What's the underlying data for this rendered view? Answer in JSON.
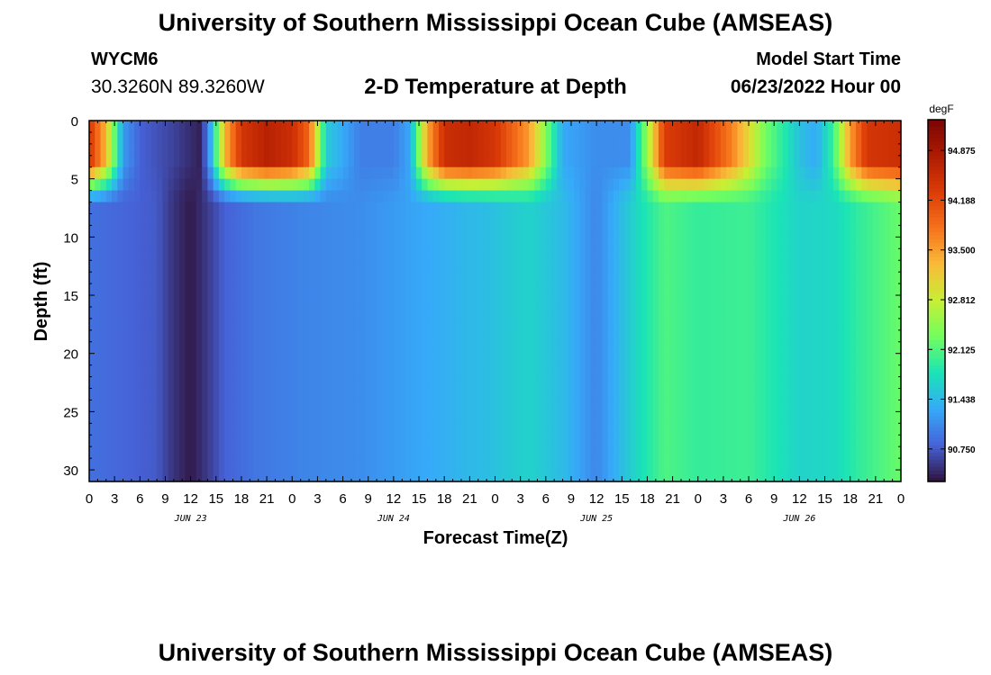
{
  "header": {
    "title": "University of Southern Mississippi Ocean Cube (AMSEAS)",
    "station": "WYCM6",
    "coordinates": "30.3260N  89.3260W",
    "subtitle": "2-D Temperature at Depth",
    "model_start_label": "Model Start Time",
    "model_start_value": "06/23/2022 Hour 00"
  },
  "footer": {
    "title": "University of Southern Mississippi Ocean Cube (AMSEAS)"
  },
  "chart_data": {
    "type": "heatmap",
    "title": "2-D Temperature at Depth",
    "xlabel": "Forecast Time(Z)",
    "ylabel": "Depth (ft)",
    "x_hours_range": [
      0,
      96
    ],
    "x_tick_step_hours": 3,
    "x_tick_labels": [
      "0",
      "3",
      "6",
      "9",
      "12",
      "15",
      "18",
      "21",
      "0",
      "3",
      "6",
      "9",
      "12",
      "15",
      "18",
      "21",
      "0",
      "3",
      "6",
      "9",
      "12",
      "15",
      "18",
      "21",
      "0",
      "3",
      "6",
      "9",
      "12",
      "15",
      "18",
      "21",
      "0"
    ],
    "date_labels": [
      {
        "text": "JUN 23",
        "hour": 12
      },
      {
        "text": "JUN 24",
        "hour": 36
      },
      {
        "text": "JUN 25",
        "hour": 60
      },
      {
        "text": "JUN 26",
        "hour": 84
      }
    ],
    "y_range_ft": [
      0,
      31
    ],
    "y_ticks": [
      0,
      5,
      10,
      15,
      20,
      25,
      30
    ],
    "colorbar": {
      "unit": "degF",
      "min": 90.3,
      "max": 95.3,
      "tick_values": [
        94.875,
        94.188,
        93.5,
        92.812,
        92.125,
        91.438,
        90.75
      ],
      "tick_labels": [
        "94.875",
        "94.188",
        "93.500",
        "92.812",
        "92.125",
        "91.438",
        "90.750"
      ]
    },
    "deep_profile": {
      "description": "temperature (degF) below ~7 ft at each forecast hour",
      "hours": [
        0,
        8,
        10,
        12,
        14,
        16,
        20,
        26,
        32,
        40,
        48,
        52,
        56,
        60,
        64,
        68,
        72,
        78,
        84,
        88,
        92,
        96
      ],
      "temps": [
        90.9,
        90.75,
        90.5,
        90.35,
        90.55,
        90.8,
        90.95,
        91.05,
        91.1,
        91.3,
        91.5,
        91.65,
        91.45,
        91.05,
        91.6,
        92.1,
        91.95,
        92.0,
        91.65,
        91.7,
        92.0,
        92.25
      ]
    },
    "surface_profile": {
      "description": "temperature (degF) in upper ~5 ft at each forecast hour",
      "hours": [
        0,
        2,
        4,
        6,
        10,
        13,
        14,
        16,
        18,
        21,
        24,
        26,
        28,
        32,
        36,
        38,
        40,
        42,
        45,
        48,
        52,
        56,
        60,
        64,
        66,
        68,
        72,
        76,
        80,
        84,
        86,
        88,
        90,
        92,
        96
      ],
      "temps": [
        94.4,
        93.3,
        91.2,
        90.8,
        90.6,
        90.4,
        90.9,
        93.3,
        94.4,
        94.7,
        94.5,
        93.9,
        91.6,
        91.0,
        91.0,
        91.3,
        93.4,
        94.5,
        94.6,
        94.4,
        93.5,
        91.3,
        91.1,
        91.1,
        92.5,
        94.3,
        94.6,
        93.7,
        92.3,
        91.5,
        91.3,
        92.0,
        93.5,
        94.4,
        94.5
      ]
    }
  }
}
